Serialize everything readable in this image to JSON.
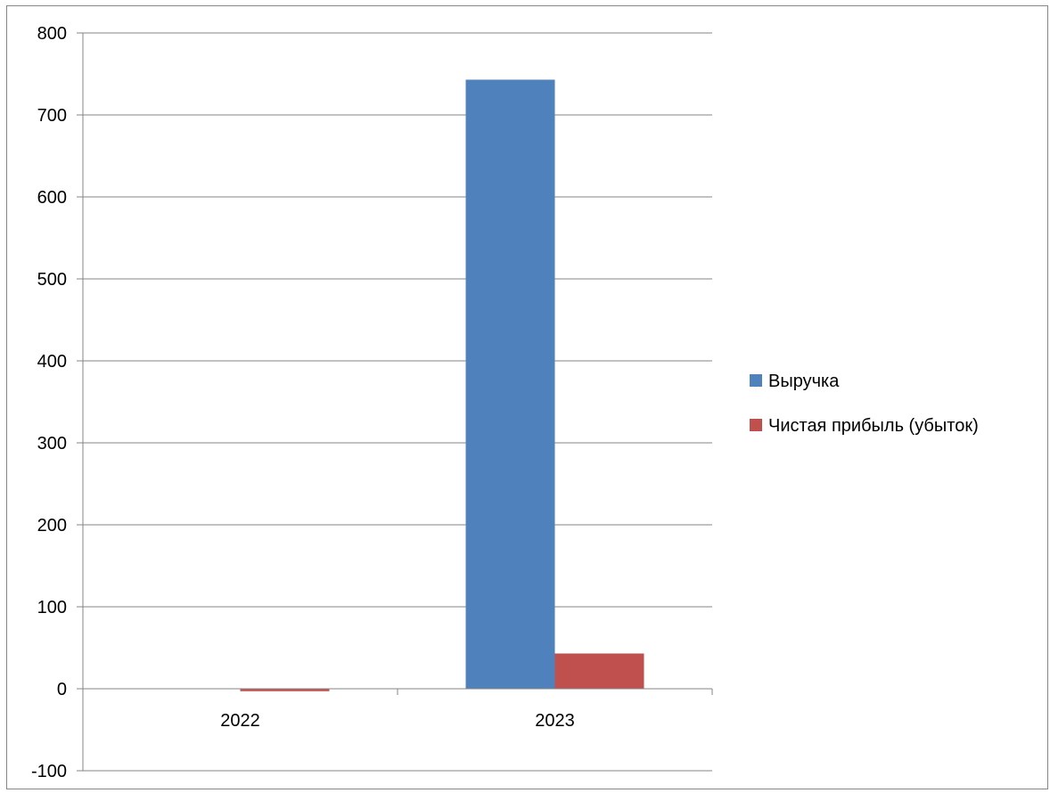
{
  "chart_data": {
    "type": "bar",
    "categories": [
      "2022",
      "2023"
    ],
    "series": [
      {
        "name": "Выручка",
        "values": [
          0,
          743
        ],
        "color": "#4F81BD"
      },
      {
        "name": "Чистая прибыль (убыток)",
        "values": [
          -3,
          43
        ],
        "color": "#C0504D"
      }
    ],
    "ylim": [
      -100,
      800
    ],
    "yticks": [
      "-100",
      "0",
      "100",
      "200",
      "300",
      "400",
      "500",
      "600",
      "700",
      "800"
    ],
    "grid": true,
    "legend_position": "right",
    "title": "",
    "xlabel": "",
    "ylabel": ""
  }
}
